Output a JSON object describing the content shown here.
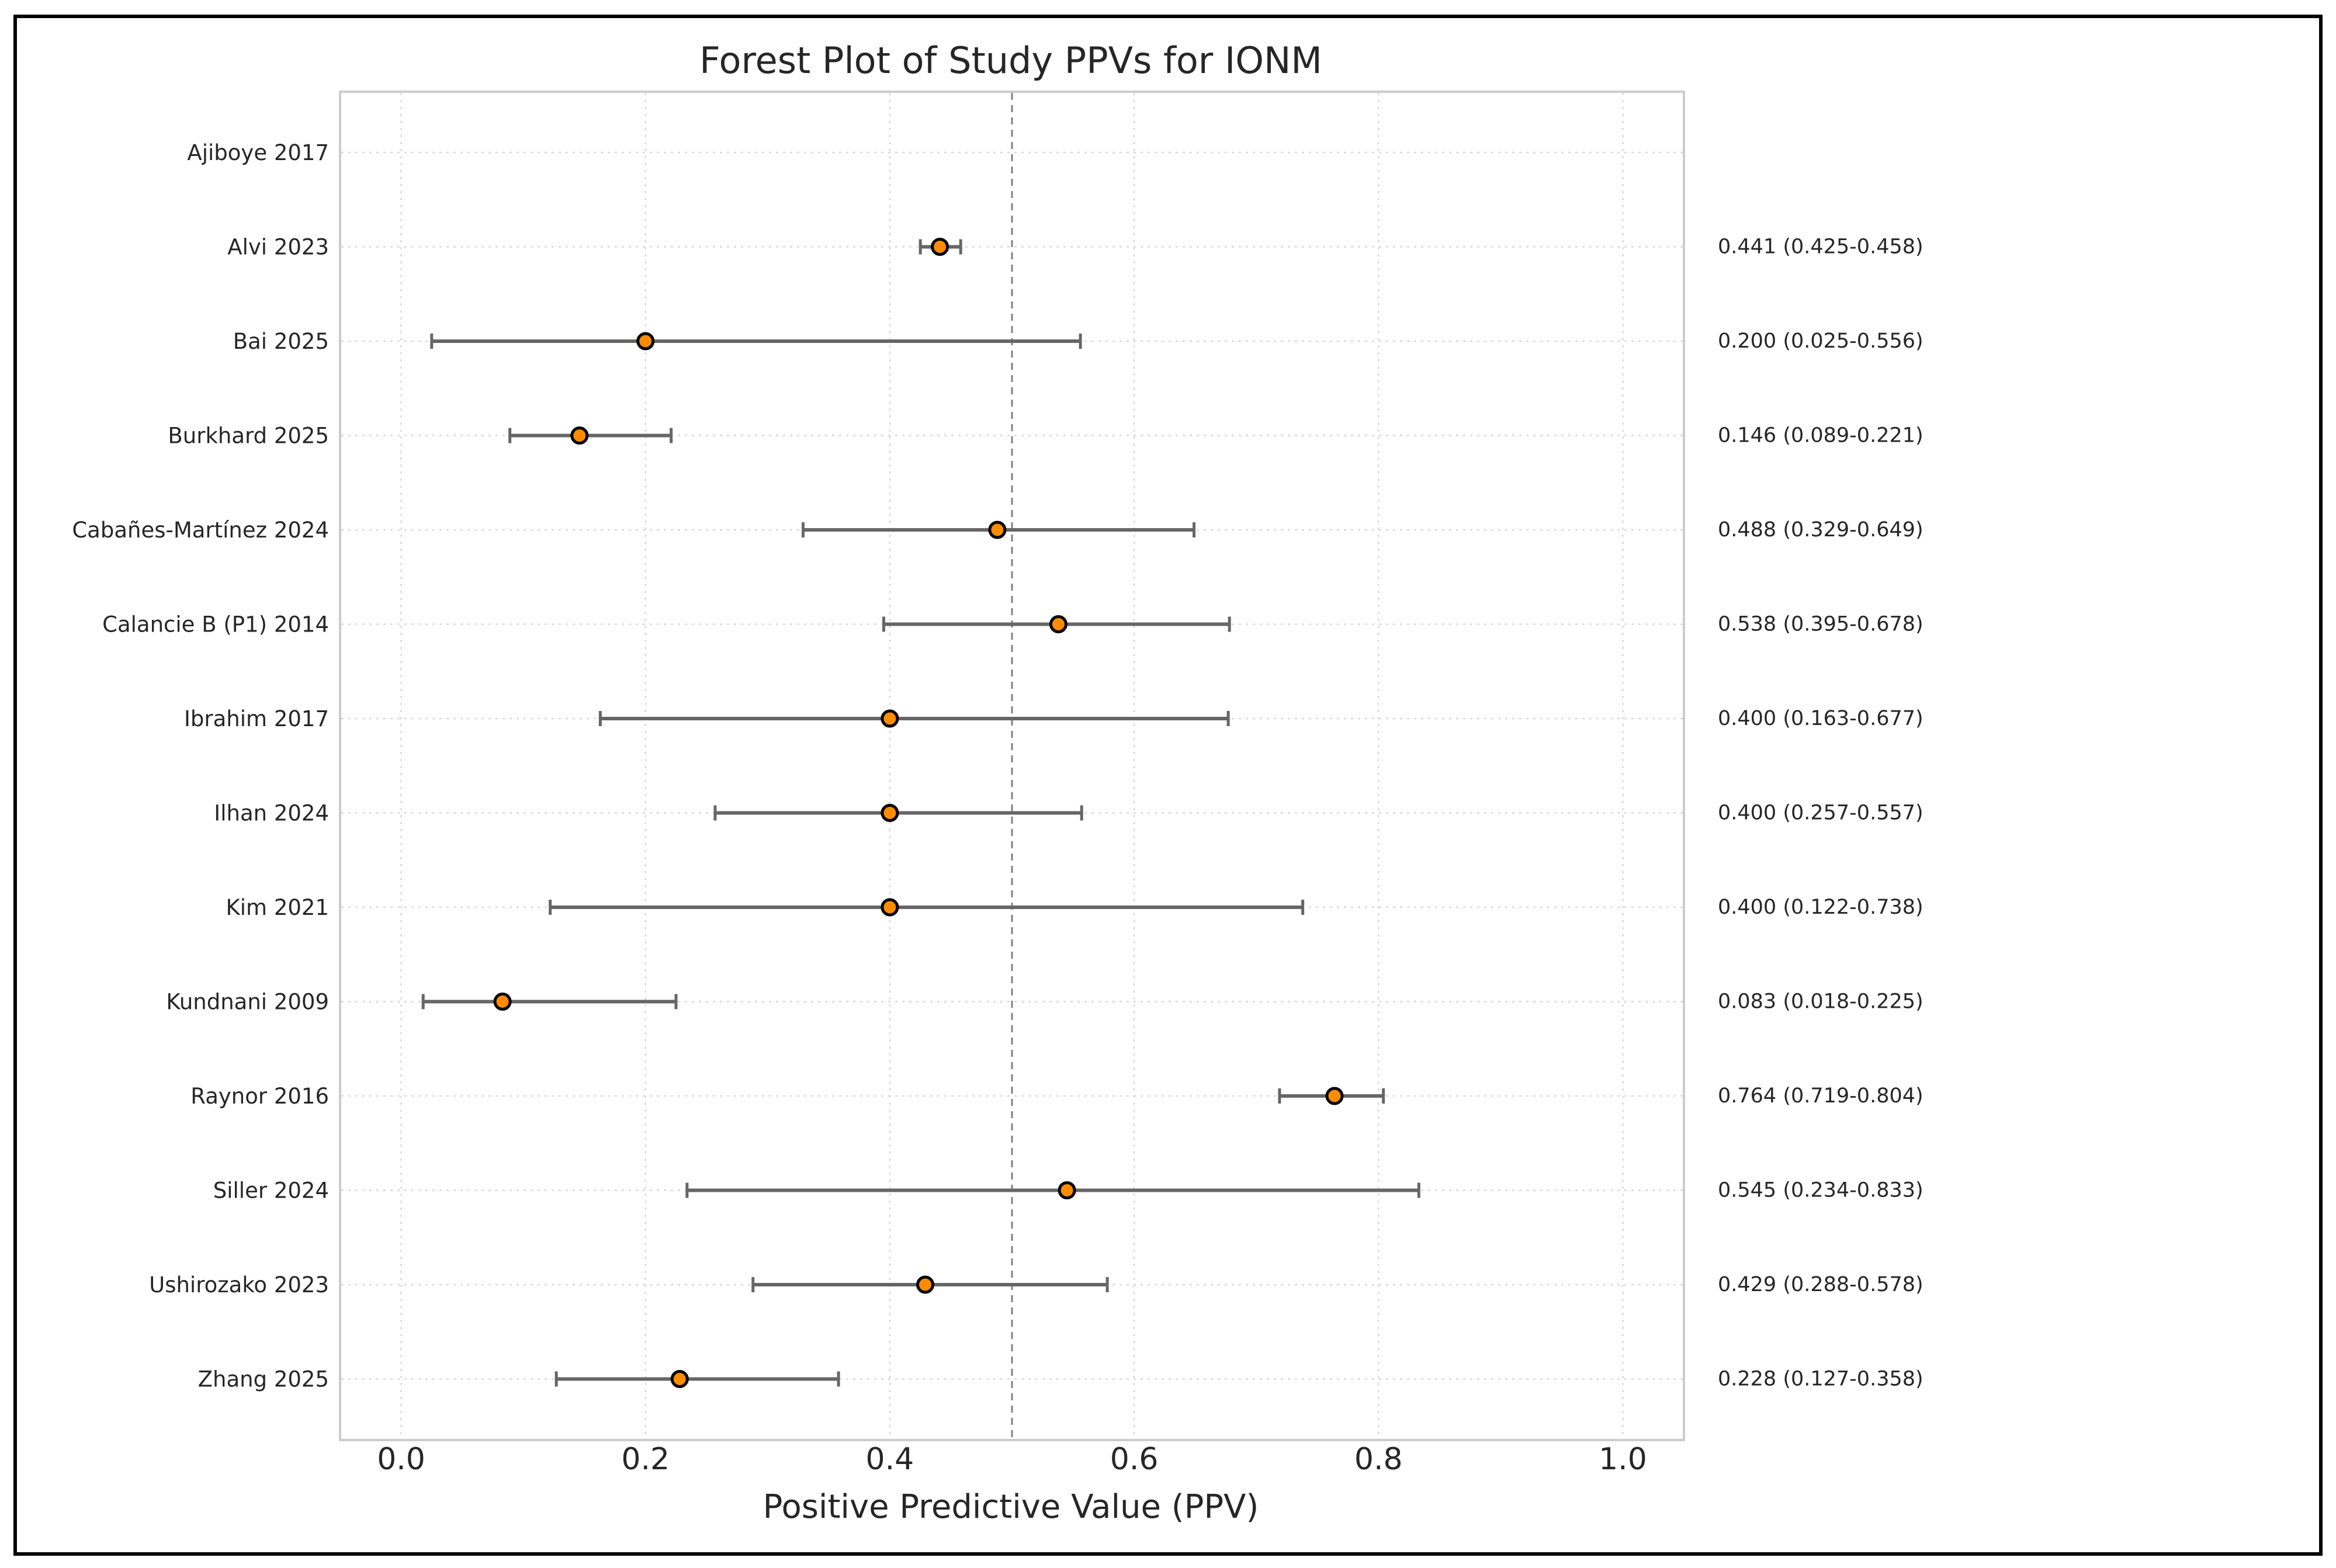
{
  "chart_data": {
    "type": "forest",
    "title": "Forest Plot of Study PPVs for IONM",
    "xlabel": "Positive Predictive Value (PPV)",
    "ylabel": "",
    "xlim": [
      -0.05,
      1.05
    ],
    "xticks": [
      0.0,
      0.2,
      0.4,
      0.6,
      0.8,
      1.0
    ],
    "xtick_labels": [
      "0.0",
      "0.2",
      "0.4",
      "0.6",
      "0.8",
      "1.0"
    ],
    "reference_line": 0.5,
    "grid": true,
    "marker_color": "#ff8c00",
    "error_color": "#666666",
    "studies": [
      {
        "label": "Ajiboye 2017",
        "ppv": null,
        "lower": null,
        "upper": null,
        "ci_text": ""
      },
      {
        "label": "Alvi 2023",
        "ppv": 0.441,
        "lower": 0.425,
        "upper": 0.458,
        "ci_text": "0.441 (0.425-0.458)"
      },
      {
        "label": "Bai 2025",
        "ppv": 0.2,
        "lower": 0.025,
        "upper": 0.556,
        "ci_text": "0.200 (0.025-0.556)"
      },
      {
        "label": "Burkhard 2025",
        "ppv": 0.146,
        "lower": 0.089,
        "upper": 0.221,
        "ci_text": "0.146 (0.089-0.221)"
      },
      {
        "label": "Cabañes-Martínez 2024",
        "ppv": 0.488,
        "lower": 0.329,
        "upper": 0.649,
        "ci_text": "0.488 (0.329-0.649)"
      },
      {
        "label": "Calancie B (P1) 2014",
        "ppv": 0.538,
        "lower": 0.395,
        "upper": 0.678,
        "ci_text": "0.538 (0.395-0.678)"
      },
      {
        "label": "Ibrahim 2017",
        "ppv": 0.4,
        "lower": 0.163,
        "upper": 0.677,
        "ci_text": "0.400 (0.163-0.677)"
      },
      {
        "label": "Ilhan 2024",
        "ppv": 0.4,
        "lower": 0.257,
        "upper": 0.557,
        "ci_text": "0.400 (0.257-0.557)"
      },
      {
        "label": "Kim 2021",
        "ppv": 0.4,
        "lower": 0.122,
        "upper": 0.738,
        "ci_text": "0.400 (0.122-0.738)"
      },
      {
        "label": "Kundnani 2009",
        "ppv": 0.083,
        "lower": 0.018,
        "upper": 0.225,
        "ci_text": "0.083 (0.018-0.225)"
      },
      {
        "label": "Raynor 2016",
        "ppv": 0.764,
        "lower": 0.719,
        "upper": 0.804,
        "ci_text": "0.764 (0.719-0.804)"
      },
      {
        "label": "Siller 2024",
        "ppv": 0.545,
        "lower": 0.234,
        "upper": 0.833,
        "ci_text": "0.545 (0.234-0.833)"
      },
      {
        "label": "Ushirozako 2023",
        "ppv": 0.429,
        "lower": 0.288,
        "upper": 0.578,
        "ci_text": "0.429 (0.288-0.578)"
      },
      {
        "label": "Zhang 2025",
        "ppv": 0.228,
        "lower": 0.127,
        "upper": 0.358,
        "ci_text": "0.228 (0.127-0.358)"
      }
    ]
  }
}
